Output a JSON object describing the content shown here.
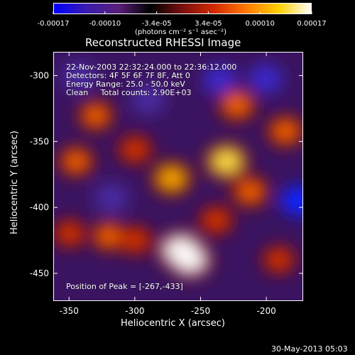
{
  "colorbar": {
    "tick_labels": [
      "-0.00017",
      "-0.00010",
      "-3.4e-05",
      "3.4e-05",
      "0.00010",
      "0.00017"
    ],
    "units": "(photons cm⁻² s⁻¹ asec⁻²)",
    "colors": [
      "#0000ff",
      "#3a1bb0",
      "#5a1f7a",
      "#000000",
      "#7a1010",
      "#d42a00",
      "#ff7a00",
      "#ffd000",
      "#ffffff"
    ]
  },
  "title": "Reconstructed RHESSI Image",
  "info": {
    "line1": "22-Nov-2003 22:32:24.000 to 22:36:12.000",
    "line2": "Detectors: 4F 5F 6F 7F 8F, Att 0",
    "line3": "Energy Range: 25.0 - 50.0 keV",
    "line4": "Clean     Total counts: 2.90E+03"
  },
  "peak_label": "Position of Peak = [-267,-433]",
  "chart_data": {
    "type": "heatmap",
    "title": "Reconstructed RHESSI Image",
    "xlabel": "Heliocentric X (arcsec)",
    "ylabel": "Heliocentric Y (arcsec)",
    "xlim": [
      -362,
      -172
    ],
    "ylim": [
      -471,
      -282
    ],
    "x_ticks": [
      -350,
      -300,
      -250,
      -200
    ],
    "y_ticks": [
      -450,
      -400,
      -350,
      -300
    ],
    "x_tick_labels": [
      "-350",
      "-300",
      "-250",
      "-200"
    ],
    "y_tick_labels": [
      "-450",
      "-400",
      "-350",
      "-300"
    ],
    "peak_position": [
      -267,
      -433
    ],
    "hotspots": [
      {
        "x": -265,
        "y": -433,
        "value": 1.0
      },
      {
        "x": -258,
        "y": -440,
        "value": 0.9
      },
      {
        "x": -230,
        "y": -365,
        "value": 0.85
      },
      {
        "x": -272,
        "y": -378,
        "value": 0.7
      },
      {
        "x": -222,
        "y": -322,
        "value": 0.6
      },
      {
        "x": -212,
        "y": -388,
        "value": 0.55
      },
      {
        "x": -330,
        "y": -330,
        "value": 0.5
      },
      {
        "x": -300,
        "y": -356,
        "value": 0.45
      },
      {
        "x": -345,
        "y": -365,
        "value": 0.5
      },
      {
        "x": -320,
        "y": -422,
        "value": 0.5
      },
      {
        "x": -300,
        "y": -425,
        "value": 0.45
      },
      {
        "x": -185,
        "y": -342,
        "value": 0.55
      },
      {
        "x": -238,
        "y": -410,
        "value": 0.45
      },
      {
        "x": -190,
        "y": -440,
        "value": 0.4
      },
      {
        "x": -350,
        "y": -420,
        "value": 0.4
      }
    ],
    "coldspots": [
      {
        "x": -235,
        "y": -303,
        "value": -0.35
      },
      {
        "x": -200,
        "y": -302,
        "value": -0.3
      },
      {
        "x": -318,
        "y": -393,
        "value": -0.25
      },
      {
        "x": -175,
        "y": -395,
        "value": -0.5
      },
      {
        "x": -290,
        "y": -318,
        "value": -0.2
      },
      {
        "x": -343,
        "y": -300,
        "value": -0.2
      }
    ]
  },
  "timestamp": "30-May-2013 05:03"
}
